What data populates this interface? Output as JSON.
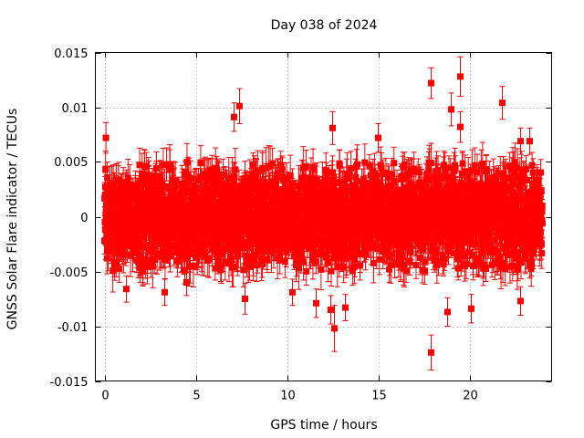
{
  "chart_data": {
    "type": "scatter",
    "title": "Day 038 of 2024",
    "xlabel": "GPS time / hours",
    "ylabel": "GNSS Solar Flare indicator / TECUs",
    "xlim": [
      -0.5,
      24.5
    ],
    "ylim": [
      -0.015,
      0.015
    ],
    "xticks": [
      0,
      5,
      10,
      15,
      20
    ],
    "xtick_labels": [
      "0",
      "5",
      "10",
      "15",
      "20"
    ],
    "yticks": [
      -0.015,
      -0.01,
      -0.005,
      0,
      0.005,
      0.01,
      0.015
    ],
    "ytick_labels": [
      "-0.015",
      "-0.01",
      "-0.005",
      "0",
      "0.005",
      "0.01",
      "0.015"
    ],
    "grid": true,
    "series": [
      {
        "name": "GNSS Solar Flare indicator",
        "color": "#ff0000",
        "marker": "square",
        "error_bars": true,
        "dense_band": {
          "x_range": [
            0,
            24
          ],
          "step_hours": 0.0083,
          "typical_abs_max": 0.005,
          "typical_error": 0.0015
        },
        "points": [
          {
            "x": 0.08,
            "y": 0.0072,
            "err": 0.0014
          },
          {
            "x": 1.2,
            "y": -0.0066,
            "err": 0.0012
          },
          {
            "x": 3.3,
            "y": -0.0069,
            "err": 0.0012
          },
          {
            "x": 4.5,
            "y": -0.006,
            "err": 0.0012
          },
          {
            "x": 7.1,
            "y": 0.0091,
            "err": 0.0013
          },
          {
            "x": 7.4,
            "y": 0.0101,
            "err": 0.0016
          },
          {
            "x": 7.7,
            "y": -0.0075,
            "err": 0.0014
          },
          {
            "x": 10.3,
            "y": -0.0069,
            "err": 0.0012
          },
          {
            "x": 11.6,
            "y": -0.0079,
            "err": 0.0013
          },
          {
            "x": 12.4,
            "y": -0.0085,
            "err": 0.0013
          },
          {
            "x": 12.6,
            "y": -0.0102,
            "err": 0.0021
          },
          {
            "x": 12.5,
            "y": 0.0081,
            "err": 0.0015
          },
          {
            "x": 13.2,
            "y": -0.0083,
            "err": 0.0012
          },
          {
            "x": 15.0,
            "y": 0.0072,
            "err": 0.0013
          },
          {
            "x": 17.9,
            "y": 0.0122,
            "err": 0.0014
          },
          {
            "x": 17.9,
            "y": -0.0124,
            "err": 0.0016
          },
          {
            "x": 18.8,
            "y": -0.0087,
            "err": 0.0013
          },
          {
            "x": 19.0,
            "y": 0.0098,
            "err": 0.0015
          },
          {
            "x": 19.5,
            "y": 0.0128,
            "err": 0.0018
          },
          {
            "x": 19.5,
            "y": 0.0082,
            "err": 0.0014
          },
          {
            "x": 20.1,
            "y": -0.0084,
            "err": 0.0013
          },
          {
            "x": 21.8,
            "y": 0.0104,
            "err": 0.0015
          },
          {
            "x": 22.8,
            "y": -0.0077,
            "err": 0.0013
          },
          {
            "x": 22.8,
            "y": 0.0069,
            "err": 0.0012
          },
          {
            "x": 23.3,
            "y": 0.0069,
            "err": 0.0012
          }
        ]
      }
    ]
  }
}
